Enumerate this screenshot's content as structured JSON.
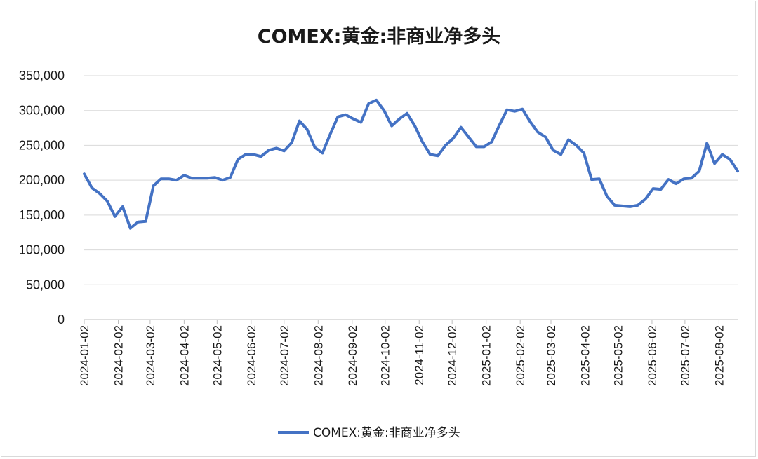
{
  "chart_data": {
    "type": "line",
    "title": "COMEX:黄金:非商业净多头",
    "xlabel": "",
    "ylabel": "",
    "ylim": [
      0,
      350000
    ],
    "yticks": [
      0,
      50000,
      100000,
      150000,
      200000,
      250000,
      300000,
      350000
    ],
    "ytick_labels": [
      "0",
      "50,000",
      "100,000",
      "150,000",
      "200,000",
      "250,000",
      "300,000",
      "350,000"
    ],
    "xtick_labels": [
      "2024-01-02",
      "2024-02-02",
      "2024-03-02",
      "2024-04-02",
      "2024-05-02",
      "2024-06-02",
      "2024-07-02",
      "2024-08-02",
      "2024-09-02",
      "2024-10-02",
      "2024-11-02",
      "2024-12-02",
      "2025-01-02",
      "2025-02-02",
      "2025-03-02",
      "2025-04-02",
      "2025-05-02",
      "2025-06-02",
      "2025-07-02",
      "2025-08-02"
    ],
    "grid": true,
    "legend_position": "bottom",
    "series": [
      {
        "name": "COMEX:黄金:非商业净多头",
        "color": "#4472c4",
        "x": [
          "2024-01-02",
          "2024-01-09",
          "2024-01-16",
          "2024-01-23",
          "2024-01-30",
          "2024-02-06",
          "2024-02-13",
          "2024-02-20",
          "2024-02-27",
          "2024-03-05",
          "2024-03-12",
          "2024-03-19",
          "2024-03-26",
          "2024-04-02",
          "2024-04-09",
          "2024-04-16",
          "2024-04-23",
          "2024-04-30",
          "2024-05-07",
          "2024-05-14",
          "2024-05-21",
          "2024-05-28",
          "2024-06-04",
          "2024-06-11",
          "2024-06-18",
          "2024-06-25",
          "2024-07-02",
          "2024-07-09",
          "2024-07-16",
          "2024-07-23",
          "2024-07-30",
          "2024-08-06",
          "2024-08-13",
          "2024-08-20",
          "2024-08-27",
          "2024-09-03",
          "2024-09-10",
          "2024-09-17",
          "2024-09-24",
          "2024-10-01",
          "2024-10-08",
          "2024-10-15",
          "2024-10-22",
          "2024-10-29",
          "2024-11-05",
          "2024-11-12",
          "2024-11-19",
          "2024-11-26",
          "2024-12-03",
          "2024-12-10",
          "2024-12-17",
          "2024-12-24",
          "2024-12-31",
          "2025-01-07",
          "2025-01-14",
          "2025-01-21",
          "2025-01-28",
          "2025-02-04",
          "2025-02-11",
          "2025-02-18",
          "2025-02-25",
          "2025-03-04",
          "2025-03-11",
          "2025-03-18",
          "2025-03-25",
          "2025-04-01",
          "2025-04-08",
          "2025-04-15",
          "2025-04-22",
          "2025-04-29",
          "2025-05-06",
          "2025-05-13",
          "2025-05-20",
          "2025-05-27",
          "2025-06-03",
          "2025-06-10",
          "2025-06-17",
          "2025-06-24",
          "2025-07-01",
          "2025-07-08",
          "2025-07-15",
          "2025-07-22",
          "2025-07-29",
          "2025-08-05",
          "2025-08-12",
          "2025-08-19"
        ],
        "values": [
          209000,
          189000,
          181000,
          170000,
          148000,
          162000,
          131000,
          140000,
          141000,
          192000,
          202000,
          202000,
          200000,
          207000,
          203000,
          203000,
          203000,
          204000,
          200000,
          204000,
          230000,
          237000,
          237000,
          234000,
          243000,
          246000,
          242000,
          254000,
          285000,
          273000,
          247000,
          239000,
          266000,
          291000,
          294000,
          288000,
          283000,
          310000,
          315000,
          300000,
          278000,
          288000,
          296000,
          278000,
          255000,
          237000,
          235000,
          250000,
          260000,
          276000,
          262000,
          248000,
          248000,
          255000,
          279000,
          301000,
          299000,
          302000,
          284000,
          269000,
          262000,
          243000,
          237000,
          258000,
          250000,
          239000,
          201000,
          202000,
          177000,
          164000,
          163000,
          162000,
          164000,
          173000,
          188000,
          187000,
          201000,
          195000,
          202000,
          203000,
          213000,
          253000,
          224000,
          237000,
          230000,
          213000
        ]
      }
    ]
  }
}
